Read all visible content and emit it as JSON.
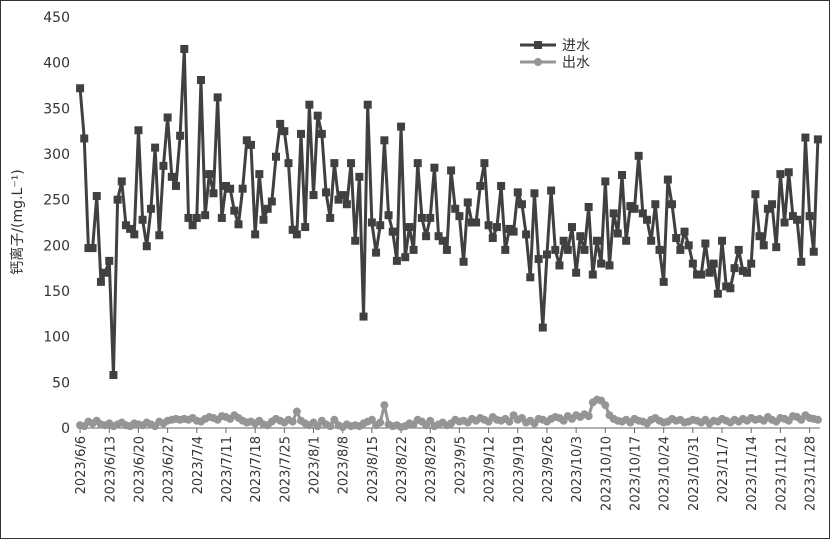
{
  "chart_data": {
    "type": "line",
    "ylabel": "钙离子/(mg.L⁻¹)",
    "categories": [
      "2023/6/6",
      null,
      null,
      null,
      null,
      null,
      null,
      "2023/6/13",
      null,
      null,
      null,
      null,
      null,
      null,
      "2023/6/20",
      null,
      null,
      null,
      null,
      null,
      null,
      "2023/6/27",
      null,
      null,
      null,
      null,
      null,
      null,
      "2023/7/4",
      null,
      null,
      null,
      null,
      null,
      null,
      "2023/7/11",
      null,
      null,
      null,
      null,
      null,
      null,
      "2023/7/18",
      null,
      null,
      null,
      null,
      null,
      null,
      "2023/7/25",
      null,
      null,
      null,
      null,
      null,
      null,
      "2023/8/1",
      null,
      null,
      null,
      null,
      null,
      null,
      "2023/8/8",
      null,
      null,
      null,
      null,
      null,
      null,
      "2023/8/15",
      null,
      null,
      null,
      null,
      null,
      null,
      "2023/8/22",
      null,
      null,
      null,
      null,
      null,
      null,
      "2023/8/29",
      null,
      null,
      null,
      null,
      null,
      null,
      "2023/9/5",
      null,
      null,
      null,
      null,
      null,
      null,
      "2023/9/12",
      null,
      null,
      null,
      null,
      null,
      null,
      "2023/9/19",
      null,
      null,
      null,
      null,
      null,
      null,
      "2023/9/26",
      null,
      null,
      null,
      null,
      null,
      null,
      "2023/10/3",
      null,
      null,
      null,
      null,
      null,
      null,
      "2023/10/10",
      null,
      null,
      null,
      null,
      null,
      null,
      "2023/10/17",
      null,
      null,
      null,
      null,
      null,
      null,
      "2023/10/24",
      null,
      null,
      null,
      null,
      null,
      null,
      "2023/10/31",
      null,
      null,
      null,
      null,
      null,
      null,
      "2023/11/7",
      null,
      null,
      null,
      null,
      null,
      null,
      "2023/11/14",
      null,
      null,
      null,
      null,
      null,
      null,
      "2023/11/21",
      null,
      null,
      null,
      null,
      null,
      null,
      "2023/11/28",
      null,
      null
    ],
    "series": [
      {
        "name": "进水",
        "color": "#404040",
        "marker": "square",
        "values": [
          372,
          317,
          197,
          197,
          254,
          160,
          170,
          183,
          58,
          250,
          270,
          222,
          218,
          212,
          326,
          228,
          199,
          240,
          307,
          211,
          287,
          340,
          275,
          265,
          320,
          415,
          230,
          222,
          230,
          381,
          233,
          278,
          257,
          362,
          230,
          265,
          262,
          238,
          223,
          262,
          315,
          310,
          212,
          278,
          228,
          240,
          248,
          297,
          333,
          325,
          290,
          217,
          212,
          322,
          220,
          354,
          255,
          342,
          322,
          258,
          230,
          290,
          250,
          255,
          245,
          290,
          205,
          275,
          122,
          354,
          225,
          192,
          222,
          315,
          233,
          215,
          183,
          330,
          187,
          220,
          195,
          290,
          230,
          210,
          230,
          285,
          210,
          205,
          195,
          282,
          240,
          232,
          182,
          247,
          225,
          225,
          265,
          290,
          222,
          208,
          220,
          265,
          195,
          218,
          215,
          258,
          245,
          212,
          165,
          257,
          185,
          110,
          190,
          260,
          195,
          178,
          205,
          195,
          220,
          170,
          210,
          195,
          242,
          168,
          205,
          180,
          270,
          178,
          235,
          213,
          277,
          205,
          243,
          240,
          298,
          235,
          228,
          205,
          245,
          195,
          160,
          272,
          245,
          208,
          195,
          215,
          200,
          180,
          168,
          168,
          202,
          170,
          180,
          147,
          205,
          155,
          153,
          175,
          195,
          172,
          170,
          180,
          256,
          210,
          200,
          240,
          245,
          198,
          278,
          225,
          280,
          232,
          228,
          182,
          318,
          232,
          193,
          316
        ]
      },
      {
        "name": "出水",
        "color": "#959595",
        "marker": "circle",
        "values": [
          3,
          2,
          7,
          5,
          8,
          4,
          3,
          5,
          2,
          4,
          6,
          3,
          2,
          5,
          4,
          3,
          6,
          4,
          2,
          7,
          5,
          8,
          9,
          10,
          9,
          10,
          9,
          11,
          8,
          7,
          10,
          12,
          11,
          9,
          13,
          12,
          10,
          14,
          11,
          8,
          6,
          7,
          5,
          8,
          4,
          3,
          7,
          10,
          8,
          6,
          9,
          7,
          18,
          8,
          5,
          3,
          6,
          2,
          8,
          4,
          2,
          9,
          3,
          1,
          4,
          2,
          3,
          2,
          5,
          7,
          9,
          3,
          6,
          25,
          4,
          2,
          3,
          1,
          2,
          5,
          4,
          9,
          7,
          3,
          8,
          2,
          4,
          6,
          3,
          5,
          9,
          7,
          8,
          6,
          10,
          8,
          11,
          9,
          7,
          12,
          9,
          8,
          10,
          7,
          14,
          9,
          11,
          6,
          8,
          5,
          10,
          9,
          7,
          10,
          12,
          11,
          8,
          13,
          10,
          14,
          12,
          15,
          13,
          28,
          31,
          30,
          25,
          14,
          10,
          8,
          7,
          9,
          6,
          10,
          8,
          7,
          5,
          9,
          11,
          8,
          6,
          7,
          10,
          8,
          9,
          6,
          7,
          9,
          8,
          6,
          9,
          5,
          8,
          7,
          10,
          8,
          6,
          9,
          7,
          10,
          8,
          11,
          9,
          10,
          8,
          12,
          9,
          7,
          11,
          10,
          8,
          13,
          12,
          9,
          14,
          11,
          10,
          9
        ]
      }
    ],
    "ylim": [
      0,
      450
    ],
    "yticks": [
      0,
      50,
      100,
      150,
      200,
      250,
      300,
      350,
      400,
      450
    ],
    "grid": false,
    "legend": "top"
  }
}
